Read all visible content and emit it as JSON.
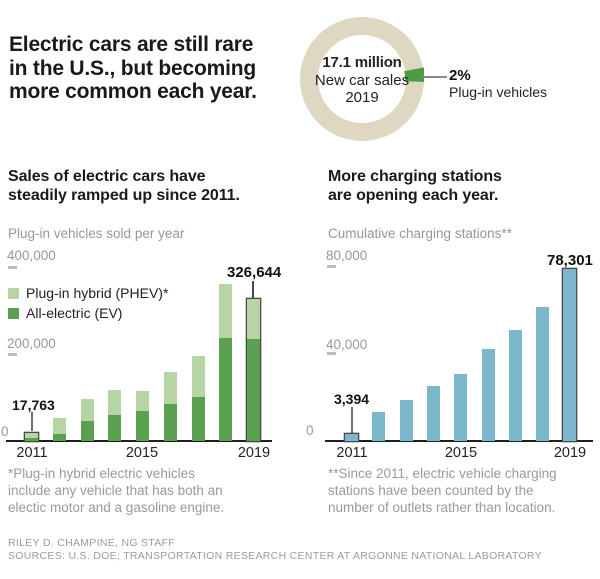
{
  "page": {
    "background": "#ffffff"
  },
  "header": {
    "title": "Electric cars are still rare in the U.S., but becoming more common each year.",
    "title_lines": [
      "Electric cars are still rare",
      "in the U.S., but becoming",
      "more common each year."
    ]
  },
  "chart_data": [
    {
      "id": "new-car-sales-donut",
      "type": "pie",
      "center_labels": {
        "value": "17.1 million",
        "line2": "New car sales",
        "line3": "2019"
      },
      "highlight": {
        "pct_label": "2%",
        "label": "Plug-in vehicles",
        "value_pct": 2,
        "color": "#4c9c43"
      },
      "remainder_pct": 98,
      "ring_color": "#ded8c2"
    },
    {
      "id": "ev-sales",
      "type": "bar",
      "stacked": true,
      "title": "Sales of electric cars have steadily ramped up since 2011.",
      "title_lines": [
        "Sales of electric cars have",
        "steadily ramped up since 2011."
      ],
      "subtitle": "Plug-in vehicles sold per year",
      "categories": [
        "2011",
        "2012",
        "2013",
        "2014",
        "2015",
        "2016",
        "2017",
        "2018",
        "2019"
      ],
      "series": [
        {
          "name": "All-electric (EV)",
          "color": "#5aa050",
          "values": [
            6000,
            16000,
            46000,
            60000,
            70000,
            85000,
            102000,
            237000,
            235000
          ]
        },
        {
          "name": "Plug-in hybrid (PHEV)*",
          "color": "#b6d4a4",
          "values": [
            11763,
            37000,
            51000,
            58000,
            44000,
            74000,
            93000,
            124000,
            91644
          ]
        }
      ],
      "totals": [
        17763,
        53000,
        97000,
        118000,
        114000,
        159000,
        195000,
        361000,
        326644
      ],
      "ylim": [
        0,
        400000
      ],
      "yticks": [
        0,
        200000,
        400000
      ],
      "ytick_labels": [
        "0",
        "200,000",
        "400,000"
      ],
      "xtick_labels": [
        "2011",
        "2015",
        "2019"
      ],
      "annotations": [
        {
          "category": "2011",
          "text": "17,763"
        },
        {
          "category": "2019",
          "text": "326,644"
        }
      ],
      "legend_position": "upper-left",
      "grid": false
    },
    {
      "id": "charging-stations",
      "type": "bar",
      "title": "More charging stations are opening each year.",
      "title_lines": [
        "More charging stations",
        "are opening each year."
      ],
      "subtitle": "Cumulative charging stations**",
      "categories": [
        "2011",
        "2012",
        "2013",
        "2014",
        "2015",
        "2016",
        "2017",
        "2018",
        "2019"
      ],
      "values": [
        3394,
        13000,
        18800,
        24900,
        30500,
        41800,
        50500,
        61000,
        78301
      ],
      "color": "#7cb8cc",
      "ylim": [
        0,
        80000
      ],
      "yticks": [
        0,
        40000,
        80000
      ],
      "ytick_labels": [
        "0",
        "40,000",
        "80,000"
      ],
      "xtick_labels": [
        "2011",
        "2015",
        "2019"
      ],
      "annotations": [
        {
          "category": "2011",
          "text": "3,394"
        },
        {
          "category": "2019",
          "text": "78,301"
        }
      ],
      "grid": false
    }
  ],
  "footnotes": {
    "left": "*Plug-in hybrid electric vehicles include any vehicle that has both an electic motor and a gasoline engine.",
    "left_lines": [
      "*Plug-in hybrid electric vehicles",
      "include any vehicle that has both an",
      "electic motor and a gasoline engine."
    ],
    "right": "**Since 2011, electric vehicle charging stations have been counted by the number of outlets rather than location.",
    "right_lines": [
      "**Since 2011, electric vehicle charging",
      "stations have been counted by the",
      "number of outlets rather than location."
    ]
  },
  "credits": {
    "byline": "RILEY D. CHAMPINE, NG STAFF",
    "sources": "SOURCES: U.S. DOE; TRANSPORTATION RESEARCH CENTER AT ARGONNE NATIONAL LABORATORY"
  }
}
